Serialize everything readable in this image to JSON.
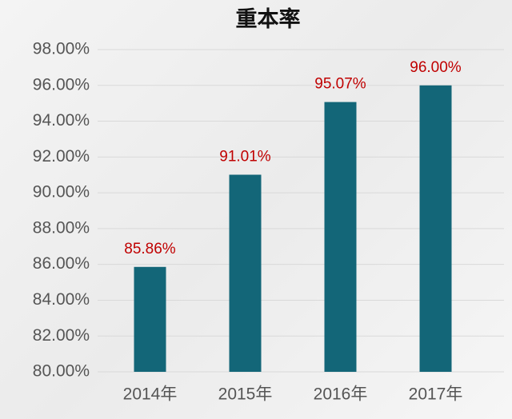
{
  "chart_data": {
    "type": "bar",
    "title": "重本率",
    "categories": [
      "2014年",
      "2015年",
      "2016年",
      "2017年"
    ],
    "values": [
      85.86,
      91.01,
      95.07,
      96.0
    ],
    "value_labels": [
      "85.86%",
      "91.01%",
      "95.07%",
      "96.00%"
    ],
    "color": "#136678",
    "value_label_color": "#c00000",
    "ylim": [
      80,
      98
    ],
    "yticks": [
      {
        "value": 80,
        "label": "80.00%"
      },
      {
        "value": 82,
        "label": "82.00%"
      },
      {
        "value": 84,
        "label": "84.00%"
      },
      {
        "value": 86,
        "label": "86.00%"
      },
      {
        "value": 88,
        "label": "88.00%"
      },
      {
        "value": 90,
        "label": "90.00%"
      },
      {
        "value": 92,
        "label": "92.00%"
      },
      {
        "value": 94,
        "label": "94.00%"
      },
      {
        "value": 96,
        "label": "96.00%"
      },
      {
        "value": 98,
        "label": "98.00%"
      }
    ],
    "grid": true
  }
}
